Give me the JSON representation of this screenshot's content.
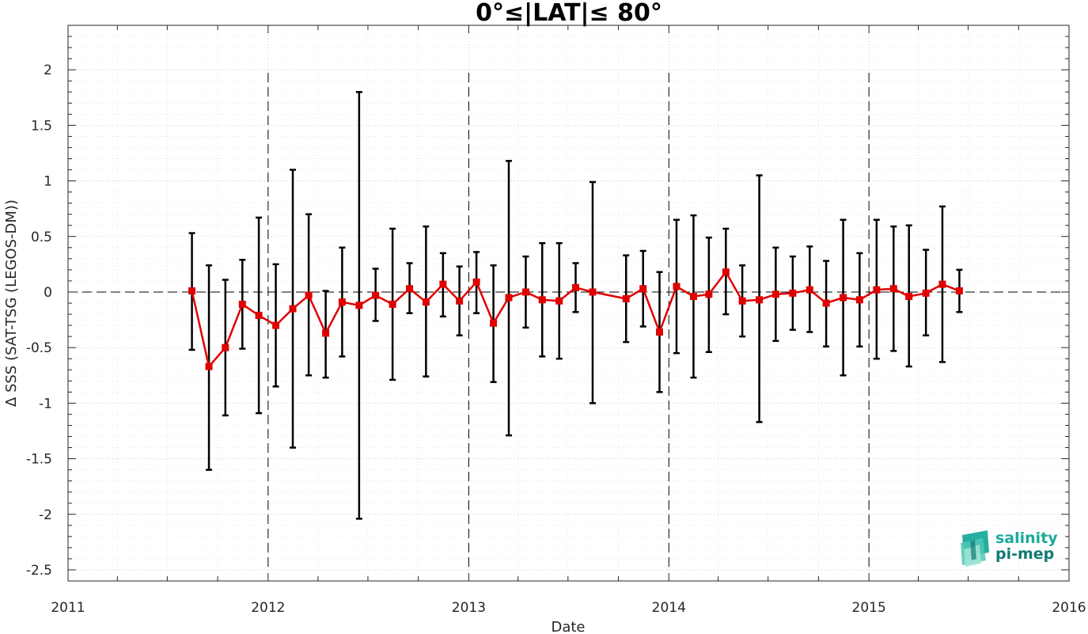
{
  "chart_data": {
    "type": "line",
    "title": "0°≤|LAT|≤ 80°",
    "xlabel": "Date",
    "ylabel": "Δ SSS (SAT-TSG (LEGOS-DM))",
    "xlim": [
      "2011-01-01",
      "2016-01-01"
    ],
    "ylim": [
      -2.6,
      2.4
    ],
    "x_ticks": [
      "2011",
      "2012",
      "2013",
      "2014",
      "2015",
      "2016"
    ],
    "y_ticks": [
      "2",
      "1.5",
      "1",
      "0.5",
      "0",
      "-0.5",
      "-1",
      "-1.5",
      "-2",
      "-2.5"
    ],
    "grid": true,
    "year_dividers": [
      "2012",
      "2013",
      "2014",
      "2015"
    ],
    "zero_line": true,
    "color": "#e00000",
    "errorbar_color": "#000000",
    "series": [
      {
        "marker": "square",
        "points": [
          {
            "x": "2011-08-15",
            "y": 0.01,
            "lo": -0.52,
            "hi": 0.53
          },
          {
            "x": "2011-09-15",
            "y": -0.67,
            "lo": -1.6,
            "hi": 0.24
          },
          {
            "x": "2011-10-15",
            "y": -0.5,
            "lo": -1.11,
            "hi": 0.11
          },
          {
            "x": "2011-11-15",
            "y": -0.11,
            "lo": -0.51,
            "hi": 0.29
          },
          {
            "x": "2011-12-15",
            "y": -0.21,
            "lo": -1.09,
            "hi": 0.67
          },
          {
            "x": "2012-01-15",
            "y": -0.3,
            "lo": -0.85,
            "hi": 0.25
          },
          {
            "x": "2012-02-15",
            "y": -0.15,
            "lo": -1.4,
            "hi": 1.1
          },
          {
            "x": "2012-03-15",
            "y": -0.03,
            "lo": -0.75,
            "hi": 0.7
          },
          {
            "x": "2012-04-15",
            "y": -0.37,
            "lo": -0.77,
            "hi": 0.01
          },
          {
            "x": "2012-05-15",
            "y": -0.09,
            "lo": -0.58,
            "hi": 0.4
          },
          {
            "x": "2012-06-15",
            "y": -0.12,
            "lo": -2.04,
            "hi": 1.8
          },
          {
            "x": "2012-07-15",
            "y": -0.03,
            "lo": -0.26,
            "hi": 0.21
          },
          {
            "x": "2012-08-15",
            "y": -0.11,
            "lo": -0.79,
            "hi": 0.57
          },
          {
            "x": "2012-09-15",
            "y": 0.03,
            "lo": -0.19,
            "hi": 0.26
          },
          {
            "x": "2012-10-15",
            "y": -0.09,
            "lo": -0.76,
            "hi": 0.59
          },
          {
            "x": "2012-11-15",
            "y": 0.07,
            "lo": -0.22,
            "hi": 0.35
          },
          {
            "x": "2012-12-15",
            "y": -0.08,
            "lo": -0.39,
            "hi": 0.23
          },
          {
            "x": "2013-01-15",
            "y": 0.09,
            "lo": -0.19,
            "hi": 0.36
          },
          {
            "x": "2013-02-15",
            "y": -0.28,
            "lo": -0.81,
            "hi": 0.24
          },
          {
            "x": "2013-03-15",
            "y": -0.05,
            "lo": -1.29,
            "hi": 1.18
          },
          {
            "x": "2013-04-15",
            "y": 0.0,
            "lo": -0.32,
            "hi": 0.32
          },
          {
            "x": "2013-05-15",
            "y": -0.07,
            "lo": -0.58,
            "hi": 0.44
          },
          {
            "x": "2013-06-15",
            "y": -0.08,
            "lo": -0.6,
            "hi": 0.44
          },
          {
            "x": "2013-07-15",
            "y": 0.04,
            "lo": -0.18,
            "hi": 0.26
          },
          {
            "x": "2013-08-15",
            "y": 0.0,
            "lo": -1.0,
            "hi": 0.99
          },
          {
            "x": "2013-10-15",
            "y": -0.06,
            "lo": -0.45,
            "hi": 0.33
          },
          {
            "x": "2013-11-15",
            "y": 0.03,
            "lo": -0.31,
            "hi": 0.37
          },
          {
            "x": "2013-12-15",
            "y": -0.36,
            "lo": -0.9,
            "hi": 0.18
          },
          {
            "x": "2014-01-15",
            "y": 0.05,
            "lo": -0.55,
            "hi": 0.65
          },
          {
            "x": "2014-02-15",
            "y": -0.04,
            "lo": -0.77,
            "hi": 0.69
          },
          {
            "x": "2014-03-15",
            "y": -0.02,
            "lo": -0.54,
            "hi": 0.49
          },
          {
            "x": "2014-04-15",
            "y": 0.18,
            "lo": -0.2,
            "hi": 0.57
          },
          {
            "x": "2014-05-15",
            "y": -0.08,
            "lo": -0.4,
            "hi": 0.24
          },
          {
            "x": "2014-06-15",
            "y": -0.07,
            "lo": -1.17,
            "hi": 1.05
          },
          {
            "x": "2014-07-15",
            "y": -0.02,
            "lo": -0.44,
            "hi": 0.4
          },
          {
            "x": "2014-08-15",
            "y": -0.01,
            "lo": -0.34,
            "hi": 0.32
          },
          {
            "x": "2014-09-15",
            "y": 0.02,
            "lo": -0.36,
            "hi": 0.41
          },
          {
            "x": "2014-10-15",
            "y": -0.1,
            "lo": -0.49,
            "hi": 0.28
          },
          {
            "x": "2014-11-15",
            "y": -0.05,
            "lo": -0.75,
            "hi": 0.65
          },
          {
            "x": "2014-12-15",
            "y": -0.07,
            "lo": -0.49,
            "hi": 0.35
          },
          {
            "x": "2015-01-15",
            "y": 0.02,
            "lo": -0.6,
            "hi": 0.65
          },
          {
            "x": "2015-02-15",
            "y": 0.03,
            "lo": -0.53,
            "hi": 0.59
          },
          {
            "x": "2015-03-15",
            "y": -0.04,
            "lo": -0.67,
            "hi": 0.6
          },
          {
            "x": "2015-04-15",
            "y": -0.01,
            "lo": -0.39,
            "hi": 0.38
          },
          {
            "x": "2015-05-15",
            "y": 0.07,
            "lo": -0.63,
            "hi": 0.77
          },
          {
            "x": "2015-06-15",
            "y": 0.01,
            "lo": -0.18,
            "hi": 0.2
          }
        ]
      }
    ]
  },
  "logo": {
    "line1": "salinity",
    "line2": "pi-mep",
    "colors": [
      "#1aab9b",
      "#0f7a73"
    ]
  }
}
